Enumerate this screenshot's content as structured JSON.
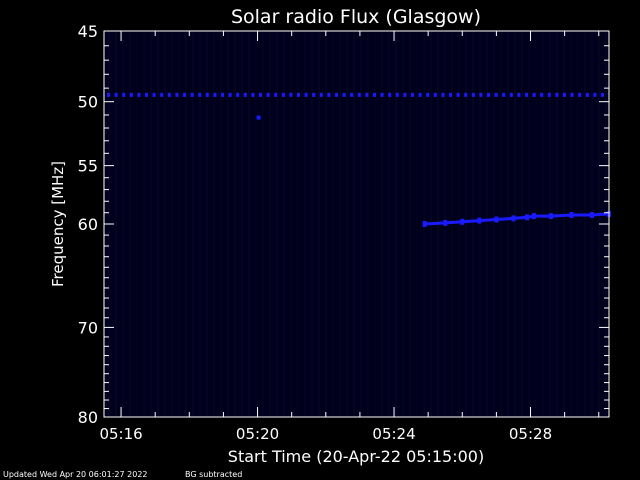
{
  "chart_data": {
    "type": "heatmap",
    "title": "Solar radio Flux (Glasgow)",
    "xlabel": "Start Time (20-Apr-22 05:15:00)",
    "ylabel": "Frequency [MHz]",
    "x_unit": "minutes after 05:15:00",
    "xlim": [
      0.5,
      15.3
    ],
    "ylim": [
      45,
      80
    ],
    "y_scale": "log",
    "y_inverted": true,
    "x_ticks": [
      1,
      5,
      9,
      13
    ],
    "x_tick_labels": [
      "05:16",
      "05:20",
      "05:24",
      "05:28"
    ],
    "y_ticks": [
      45,
      50,
      55,
      60,
      70,
      80
    ],
    "y_tick_labels": [
      "45",
      "50",
      "55",
      "60",
      "70",
      "80"
    ],
    "background_color": "#00001c",
    "signal_color": "#1a1aff",
    "series": [
      {
        "values_freq_mhz": [
          49.5
        ],
        "x_range": [
          0.5,
          15.3
        ],
        "style": "dotted constant band"
      },
      {
        "x": [
          5.03
        ],
        "y": [
          51.2
        ],
        "style": "isolated point"
      },
      {
        "x": [
          9.9,
          10.5,
          11.0,
          11.5,
          12.0,
          12.5,
          12.9,
          13.1,
          13.6,
          14.2,
          14.8,
          15.3
        ],
        "y": [
          60.0,
          59.9,
          59.8,
          59.7,
          59.6,
          59.5,
          59.4,
          59.3,
          59.3,
          59.2,
          59.2,
          59.1
        ],
        "style": "drifting emission"
      }
    ]
  },
  "footer": {
    "updated": "Updated Wed Apr 20 06:01:27 2022",
    "bg": "BG subtracted"
  }
}
